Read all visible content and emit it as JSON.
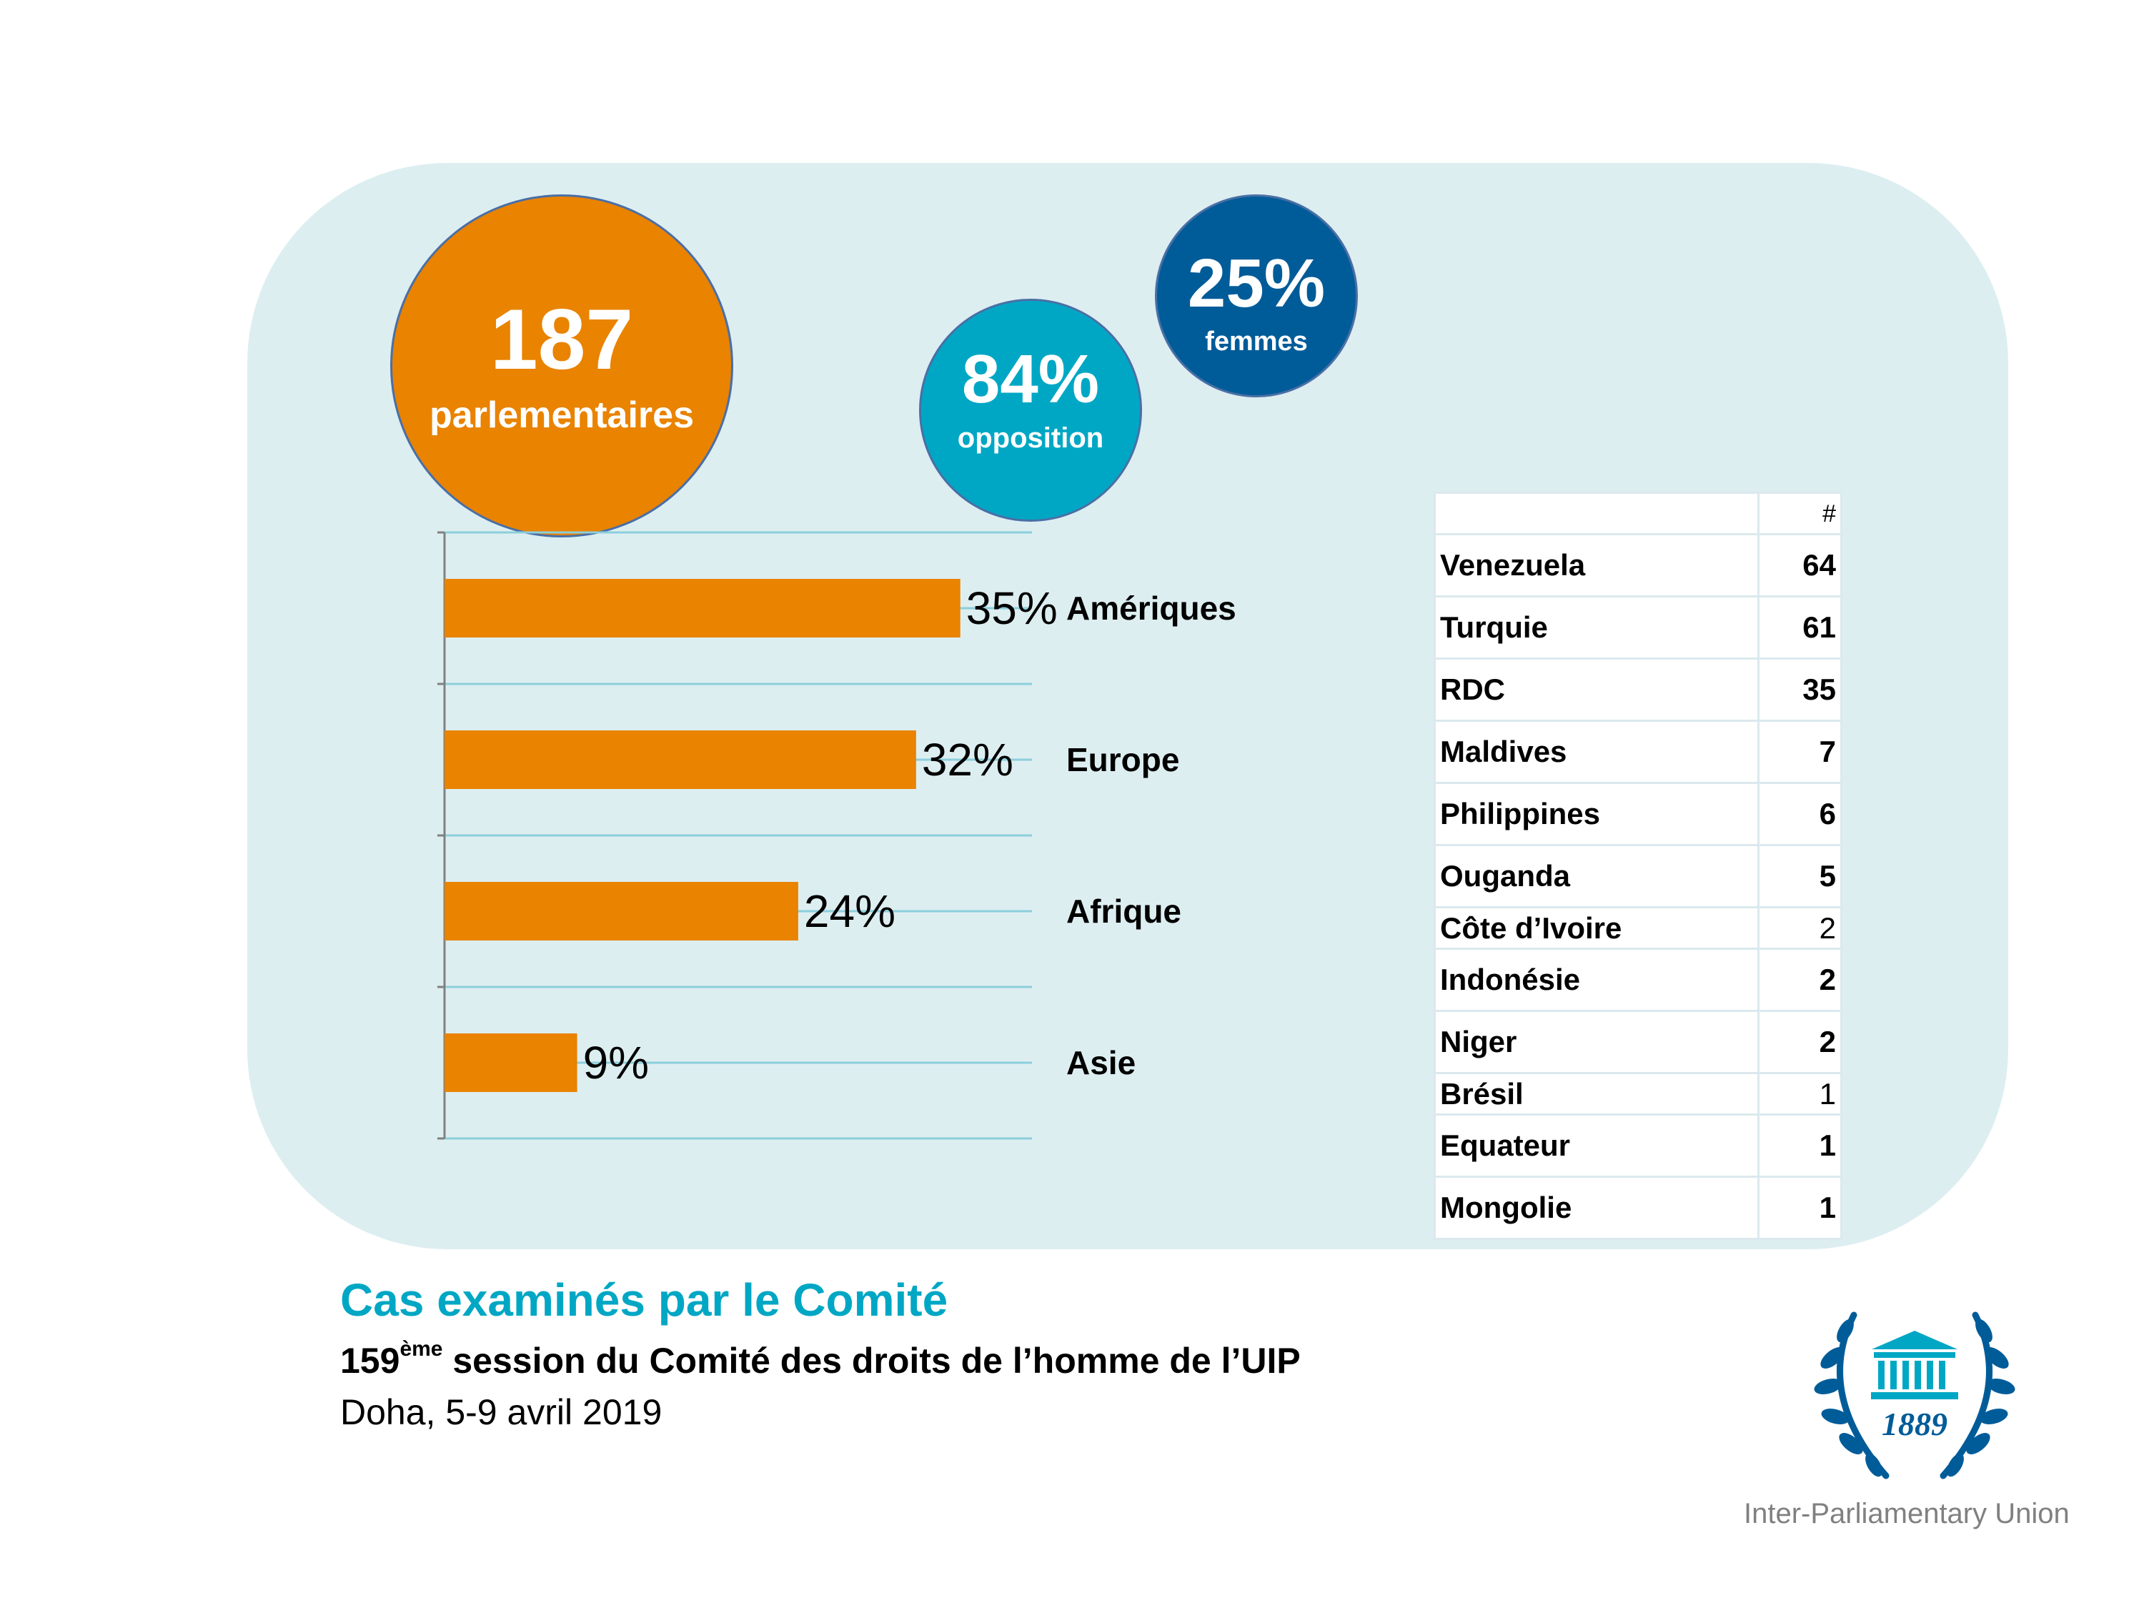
{
  "colors": {
    "orange": "#e98300",
    "teal": "#00a7c4",
    "navy": "#005c99",
    "panel": "#ddeef1",
    "gridline": "#8ccfdb"
  },
  "stats": {
    "total": {
      "value": "187",
      "label": "parlementaires"
    },
    "opposition": {
      "value": "84%",
      "label": "opposition"
    },
    "women": {
      "value": "25%",
      "label": "femmes"
    }
  },
  "chart_data": {
    "type": "bar",
    "orientation": "horizontal",
    "categories": [
      "Amériques",
      "Europe",
      "Afrique",
      "Asie"
    ],
    "values": [
      35,
      32,
      24,
      9
    ],
    "value_labels": [
      "35%",
      "32%",
      "24%",
      "9%"
    ],
    "xlim": [
      0,
      40
    ],
    "grid": true,
    "legend": "none"
  },
  "table": {
    "header": [
      "",
      "#"
    ],
    "rows": [
      {
        "country": "Venezuela",
        "count": "64",
        "weight": "bold"
      },
      {
        "country": "Turquie",
        "count": "61",
        "weight": "bold"
      },
      {
        "country": "RDC",
        "count": "35",
        "weight": "bold"
      },
      {
        "country": "Maldives",
        "count": "7",
        "weight": "bold"
      },
      {
        "country": "Philippines",
        "count": "6",
        "weight": "bold"
      },
      {
        "country": "Ouganda",
        "count": "5",
        "weight": "bold"
      },
      {
        "country": "Côte d’Ivoire",
        "count": "2",
        "weight": "plain"
      },
      {
        "country": "Indonésie",
        "count": "2",
        "weight": "bold"
      },
      {
        "country": "Niger",
        "count": "2",
        "weight": "bold"
      },
      {
        "country": "Brésil",
        "count": "1",
        "weight": "plain"
      },
      {
        "country": "Equateur",
        "count": "1",
        "weight": "bold"
      },
      {
        "country": "Mongolie",
        "count": "1",
        "weight": "bold"
      }
    ]
  },
  "footer": {
    "title": "Cas examinés par le Comité",
    "session_number": "159",
    "session_sup": "ème",
    "session_rest": " session du Comité des droits de l’homme de l’UIP",
    "place_date": "Doha, 5-9 avril 2019"
  },
  "logo": {
    "year": "1889",
    "org": "Inter-Parliamentary Union",
    "icon": "parliament-laurel-icon"
  }
}
